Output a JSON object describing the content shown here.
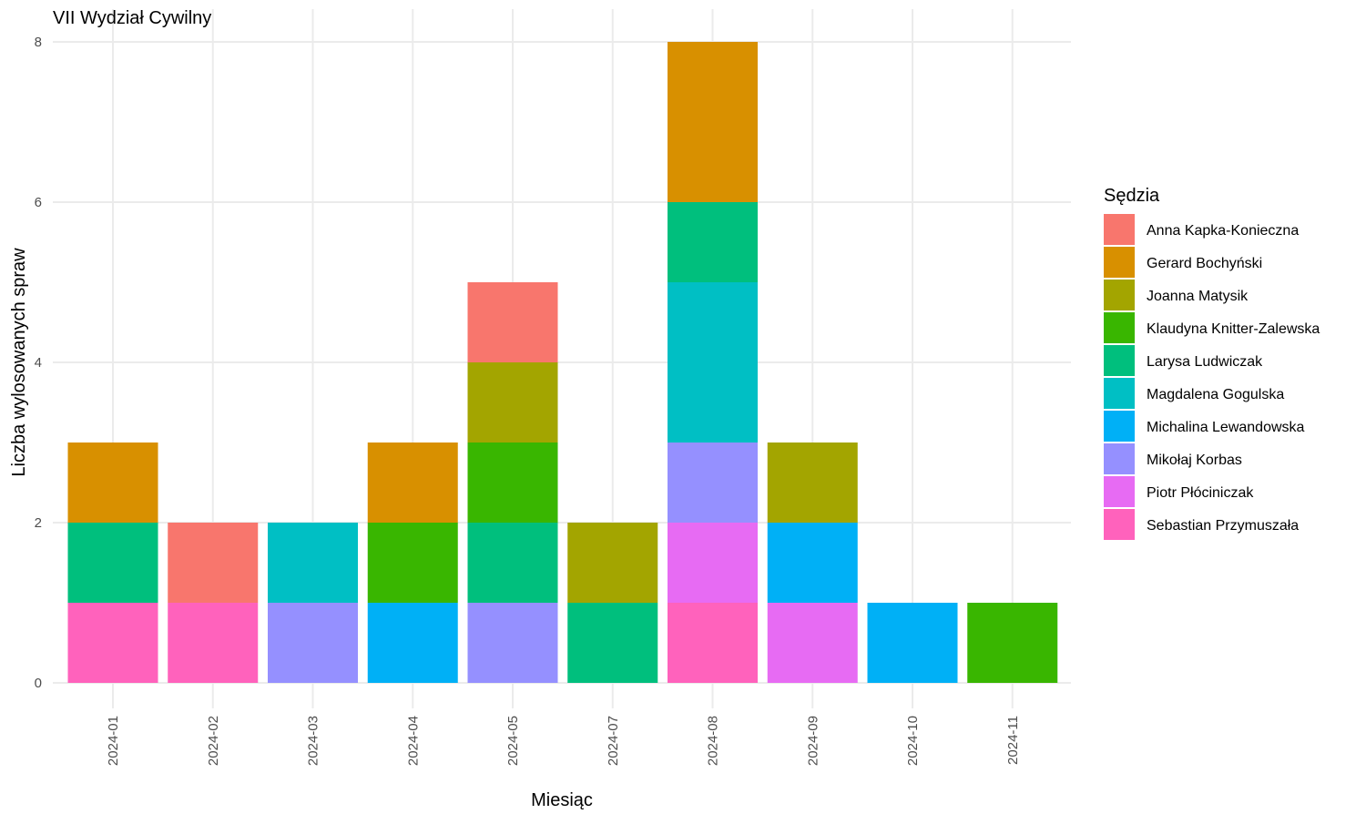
{
  "chart_data": {
    "type": "bar",
    "stacked": true,
    "title": "VII Wydział Cywilny",
    "xlabel": "Miesiąc",
    "ylabel": "Liczba wylosowanych spraw",
    "ylim": [
      0,
      8
    ],
    "y_ticks": [
      "0",
      "2",
      "4",
      "6",
      "8"
    ],
    "grid": true,
    "legend_title": "Sędzia",
    "legend_position": "right",
    "categories": [
      "2024-01",
      "2024-02",
      "2024-03",
      "2024-04",
      "2024-05",
      "2024-07",
      "2024-08",
      "2024-09",
      "2024-10",
      "2024-11"
    ],
    "series": [
      {
        "name": "Anna Kapka-Konieczna",
        "color": "#F8766D",
        "values": [
          0,
          1,
          0,
          0,
          1,
          0,
          0,
          0,
          0,
          0
        ]
      },
      {
        "name": "Gerard Bochyński",
        "color": "#D89000",
        "values": [
          1,
          0,
          0,
          1,
          0,
          0,
          2,
          0,
          0,
          0
        ]
      },
      {
        "name": "Joanna Matysik",
        "color": "#A3A500",
        "values": [
          0,
          0,
          0,
          0,
          1,
          1,
          0,
          1,
          0,
          0
        ]
      },
      {
        "name": "Klaudyna Knitter-Zalewska",
        "color": "#39B600",
        "values": [
          0,
          0,
          0,
          1,
          1,
          0,
          0,
          0,
          0,
          1
        ]
      },
      {
        "name": "Larysa Ludwiczak",
        "color": "#00BF7D",
        "values": [
          1,
          0,
          0,
          0,
          1,
          1,
          1,
          0,
          0,
          0
        ]
      },
      {
        "name": "Magdalena Gogulska",
        "color": "#00BFC4",
        "values": [
          0,
          0,
          1,
          0,
          0,
          0,
          2,
          0,
          0,
          0
        ]
      },
      {
        "name": "Michalina Lewandowska",
        "color": "#00B0F6",
        "values": [
          0,
          0,
          0,
          1,
          0,
          0,
          0,
          1,
          1,
          0
        ]
      },
      {
        "name": "Mikołaj Korbas",
        "color": "#9590FF",
        "values": [
          0,
          0,
          1,
          0,
          1,
          0,
          1,
          0,
          0,
          0
        ]
      },
      {
        "name": "Piotr Płóciniczak",
        "color": "#E76BF3",
        "values": [
          0,
          0,
          0,
          0,
          0,
          0,
          1,
          1,
          0,
          0
        ]
      },
      {
        "name": "Sebastian Przymuszała",
        "color": "#FF62BC",
        "values": [
          1,
          1,
          0,
          0,
          0,
          0,
          1,
          0,
          0,
          0
        ]
      }
    ]
  }
}
